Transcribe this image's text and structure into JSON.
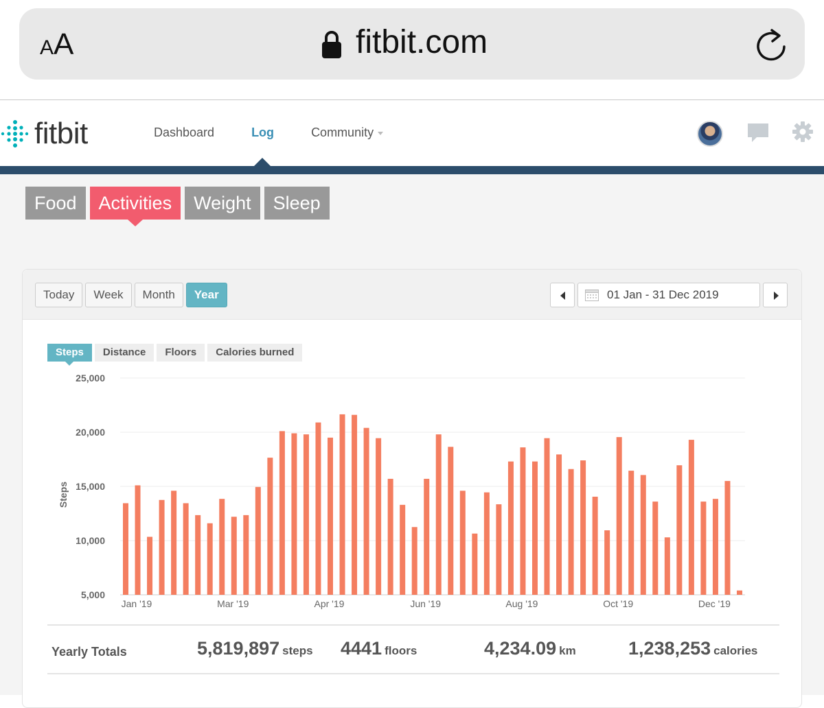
{
  "browser": {
    "aa_small": "A",
    "aa_large": "A",
    "url": "fitbit.com"
  },
  "header": {
    "logo_text": "fitbit",
    "nav": [
      {
        "label": "Dashboard"
      },
      {
        "label": "Log"
      },
      {
        "label": "Community"
      }
    ]
  },
  "category_tabs": [
    "Food",
    "Activities",
    "Weight",
    "Sleep"
  ],
  "range_buttons": [
    "Today",
    "Week",
    "Month",
    "Year"
  ],
  "date_range": "01 Jan - 31 Dec 2019",
  "metric_tabs": [
    "Steps",
    "Distance",
    "Floors",
    "Calories burned"
  ],
  "colors": {
    "accent": "#63b5c4",
    "active_category": "#f25c6e",
    "bar": "#f47e60",
    "header_bar": "#2c4d6b"
  },
  "chart_data": {
    "type": "bar",
    "title": "",
    "xlabel": "",
    "ylabel": "Steps",
    "ylim": [
      5000,
      25000
    ],
    "yticks": [
      "5,000",
      "10,000",
      "15,000",
      "20,000",
      "25,000"
    ],
    "ytick_values": [
      5000,
      10000,
      15000,
      20000,
      25000
    ],
    "xtick_labels": [
      {
        "label": "Jan '19",
        "index": 0
      },
      {
        "label": "Mar '19",
        "index": 8
      },
      {
        "label": "Apr '19",
        "index": 16
      },
      {
        "label": "Jun '19",
        "index": 24
      },
      {
        "label": "Aug '19",
        "index": 32
      },
      {
        "label": "Oct '19",
        "index": 40
      },
      {
        "label": "Dec '19",
        "index": 48
      }
    ],
    "series": [
      {
        "name": "Steps",
        "values": [
          13450,
          15100,
          10350,
          13750,
          14600,
          13450,
          12350,
          11600,
          13850,
          12200,
          12350,
          14950,
          17650,
          20100,
          19900,
          19800,
          20900,
          19500,
          21650,
          21600,
          20400,
          19450,
          15700,
          13300,
          11250,
          15700,
          19800,
          18650,
          14600,
          10650,
          14450,
          13350,
          17300,
          18600,
          17300,
          19450,
          17950,
          16600,
          17400,
          14050,
          10950,
          19550,
          16450,
          16050,
          13600,
          10300,
          16950,
          19300,
          13600,
          13850,
          15500,
          5400
        ]
      }
    ]
  },
  "totals": {
    "label": "Yearly Totals",
    "steps": {
      "value": "5,819,897",
      "unit": "steps"
    },
    "floors": {
      "value": "4441",
      "unit": "floors"
    },
    "distance": {
      "value": "4,234.09",
      "unit": "km"
    },
    "calories": {
      "value": "1,238,253",
      "unit": "calories"
    }
  }
}
